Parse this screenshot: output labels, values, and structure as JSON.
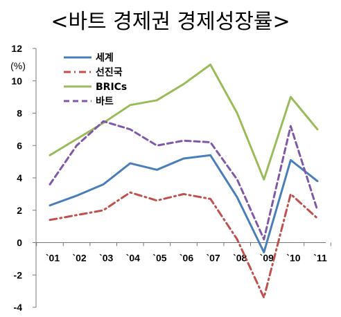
{
  "chart_data": {
    "type": "line",
    "title": "<바트 경제권 경제성장률>",
    "ylabel": "(%)",
    "xlabel": "",
    "x": [
      "`01",
      "`02",
      "`03",
      "`04",
      "`05",
      "`06",
      "`07",
      "`08",
      "`09",
      "`10",
      "`11"
    ],
    "ylim": [
      -4,
      12
    ],
    "yticks": [
      -4,
      -2,
      0,
      2,
      4,
      6,
      8,
      10,
      12
    ],
    "grid": false,
    "legend": "top-left",
    "series": [
      {
        "name": "세계",
        "color": "#4a7ebb",
        "dash": "solid",
        "values": [
          2.3,
          2.9,
          3.6,
          4.9,
          4.5,
          5.2,
          5.4,
          2.8,
          -0.6,
          5.1,
          3.8
        ]
      },
      {
        "name": "선진국",
        "color": "#c0504d",
        "dash": "dashdot",
        "values": [
          1.4,
          1.7,
          2.0,
          3.1,
          2.6,
          3.0,
          2.7,
          0.2,
          -3.4,
          3.0,
          1.5
        ]
      },
      {
        "name": "BRICs",
        "color": "#9bbb59",
        "dash": "solid",
        "values": [
          5.4,
          6.4,
          7.4,
          8.5,
          8.8,
          9.8,
          11.0,
          8.0,
          3.9,
          9.0,
          7.0
        ]
      },
      {
        "name": "바트",
        "color": "#7f59a8",
        "dash": "dash",
        "values": [
          3.6,
          6.0,
          7.5,
          7.0,
          6.0,
          6.3,
          6.2,
          3.9,
          0.2,
          7.2,
          2.0
        ]
      }
    ]
  }
}
